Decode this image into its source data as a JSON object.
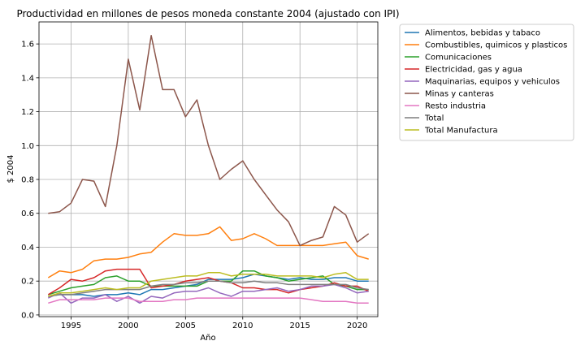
{
  "chart_data": {
    "type": "line",
    "title": "Productividad en millones de pesos moneda constante 2004 (ajustado con IPI)",
    "xlabel": "Año",
    "ylabel": "$ 2004",
    "xlim": [
      1992.2,
      2021.8
    ],
    "ylim": [
      -0.01,
      1.73
    ],
    "xticks": [
      1995,
      2000,
      2005,
      2010,
      2015,
      2020
    ],
    "yticks": [
      0.0,
      0.2,
      0.4,
      0.6,
      0.8,
      1.0,
      1.2,
      1.4,
      1.6
    ],
    "ytick_labels": [
      "0.0",
      "0.2",
      "0.4",
      "0.6",
      "0.8",
      "1.0",
      "1.2",
      "1.4",
      "1.6"
    ],
    "grid": true,
    "legend_position": "outside-right",
    "x": [
      1993,
      1994,
      1995,
      1996,
      1997,
      1998,
      1999,
      2000,
      2001,
      2002,
      2003,
      2004,
      2005,
      2006,
      2007,
      2008,
      2009,
      2010,
      2011,
      2012,
      2013,
      2014,
      2015,
      2016,
      2017,
      2018,
      2019,
      2020,
      2021
    ],
    "series": [
      {
        "name": "Alimentos, bebidas y tabaco",
        "color": "#1f77b4",
        "values": [
          0.11,
          0.12,
          0.12,
          0.12,
          0.11,
          0.12,
          0.12,
          0.13,
          0.12,
          0.15,
          0.15,
          0.16,
          0.17,
          0.18,
          0.21,
          0.21,
          0.21,
          0.22,
          0.24,
          0.23,
          0.22,
          0.21,
          0.22,
          0.21,
          0.21,
          0.22,
          0.22,
          0.2,
          0.2
        ]
      },
      {
        "name": "Combustibles, quimicos y plasticos",
        "color": "#ff7f0e",
        "values": [
          0.22,
          0.26,
          0.25,
          0.27,
          0.32,
          0.33,
          0.33,
          0.34,
          0.36,
          0.37,
          0.43,
          0.48,
          0.47,
          0.47,
          0.48,
          0.52,
          0.44,
          0.45,
          0.48,
          0.45,
          0.41,
          0.41,
          0.41,
          0.41,
          0.41,
          0.42,
          0.43,
          0.35,
          0.33
        ]
      },
      {
        "name": "Comunicaciones",
        "color": "#2ca02c",
        "values": [
          0.12,
          0.14,
          0.16,
          0.17,
          0.18,
          0.22,
          0.23,
          0.2,
          0.2,
          0.17,
          0.17,
          0.17,
          0.17,
          0.17,
          0.2,
          0.2,
          0.2,
          0.26,
          0.26,
          0.23,
          0.22,
          0.2,
          0.21,
          0.22,
          0.23,
          0.18,
          0.17,
          0.15,
          0.15
        ]
      },
      {
        "name": "Electricidad, gas y agua",
        "color": "#d62728",
        "values": [
          0.12,
          0.16,
          0.21,
          0.2,
          0.22,
          0.26,
          0.27,
          0.27,
          0.27,
          0.16,
          0.17,
          0.18,
          0.2,
          0.21,
          0.22,
          0.2,
          0.19,
          0.16,
          0.16,
          0.15,
          0.15,
          0.13,
          0.15,
          0.16,
          0.17,
          0.19,
          0.17,
          0.17,
          0.14
        ]
      },
      {
        "name": "Maquinarias, equipos y vehiculos",
        "color": "#9467bd",
        "values": [
          0.1,
          0.13,
          0.07,
          0.1,
          0.1,
          0.12,
          0.08,
          0.11,
          0.07,
          0.11,
          0.1,
          0.13,
          0.14,
          0.14,
          0.16,
          0.13,
          0.11,
          0.14,
          0.14,
          0.15,
          0.16,
          0.14,
          0.15,
          0.17,
          0.17,
          0.18,
          0.16,
          0.13,
          0.14
        ]
      },
      {
        "name": "Minas y canteras",
        "color": "#8c564b",
        "values": [
          0.6,
          0.61,
          0.66,
          0.8,
          0.79,
          0.64,
          1.0,
          1.51,
          1.21,
          1.65,
          1.33,
          1.33,
          1.17,
          1.27,
          1.0,
          0.8,
          0.86,
          0.91,
          0.8,
          0.71,
          0.62,
          0.55,
          0.41,
          0.44,
          0.46,
          0.64,
          0.59,
          0.43,
          0.48
        ]
      },
      {
        "name": "Resto industria",
        "color": "#e377c2",
        "values": [
          0.07,
          0.09,
          0.09,
          0.09,
          0.09,
          0.1,
          0.1,
          0.1,
          0.08,
          0.08,
          0.08,
          0.09,
          0.09,
          0.1,
          0.1,
          0.1,
          0.1,
          0.1,
          0.1,
          0.1,
          0.1,
          0.1,
          0.1,
          0.09,
          0.08,
          0.08,
          0.08,
          0.07,
          0.07
        ]
      },
      {
        "name": "Total",
        "color": "#7f7f7f",
        "values": [
          0.11,
          0.12,
          0.12,
          0.13,
          0.14,
          0.15,
          0.15,
          0.15,
          0.15,
          0.17,
          0.18,
          0.18,
          0.19,
          0.19,
          0.2,
          0.2,
          0.19,
          0.19,
          0.2,
          0.19,
          0.19,
          0.18,
          0.18,
          0.18,
          0.18,
          0.18,
          0.18,
          0.16,
          0.15
        ]
      },
      {
        "name": "Total Manufactura",
        "color": "#bcbd22",
        "values": [
          0.11,
          0.13,
          0.13,
          0.14,
          0.15,
          0.16,
          0.15,
          0.16,
          0.16,
          0.2,
          0.21,
          0.22,
          0.23,
          0.23,
          0.25,
          0.25,
          0.23,
          0.24,
          0.24,
          0.24,
          0.23,
          0.23,
          0.23,
          0.23,
          0.22,
          0.24,
          0.25,
          0.21,
          0.21
        ]
      }
    ]
  }
}
